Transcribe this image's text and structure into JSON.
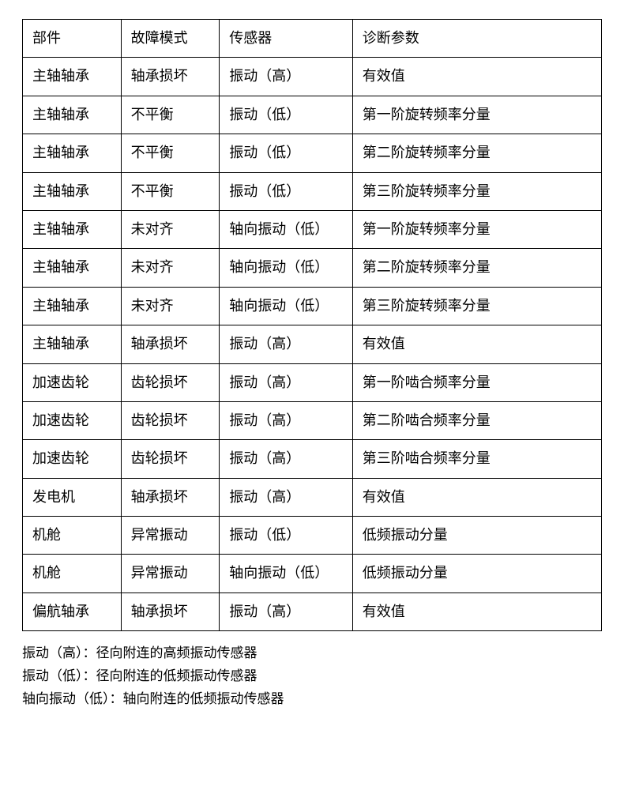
{
  "table": {
    "columns": [
      "部件",
      "故障模式",
      "传感器",
      "诊断参数"
    ],
    "rows": [
      [
        "主轴轴承",
        "轴承损坏",
        "振动（高）",
        "有效值"
      ],
      [
        "主轴轴承",
        "不平衡",
        "振动（低）",
        "第一阶旋转频率分量"
      ],
      [
        "主轴轴承",
        "不平衡",
        "振动（低）",
        "第二阶旋转频率分量"
      ],
      [
        "主轴轴承",
        "不平衡",
        "振动（低）",
        "第三阶旋转频率分量"
      ],
      [
        "主轴轴承",
        "未对齐",
        "轴向振动（低）",
        "第一阶旋转频率分量"
      ],
      [
        "主轴轴承",
        "未对齐",
        "轴向振动（低）",
        "第二阶旋转频率分量"
      ],
      [
        "主轴轴承",
        "未对齐",
        "轴向振动（低）",
        "第三阶旋转频率分量"
      ],
      [
        "主轴轴承",
        "轴承损坏",
        "振动（高）",
        "有效值"
      ],
      [
        "加速齿轮",
        "齿轮损坏",
        "振动（高）",
        "第一阶啮合频率分量"
      ],
      [
        "加速齿轮",
        "齿轮损坏",
        "振动（高）",
        "第二阶啮合频率分量"
      ],
      [
        "加速齿轮",
        "齿轮损坏",
        "振动（高）",
        "第三阶啮合频率分量"
      ],
      [
        "发电机",
        "轴承损坏",
        "振动（高）",
        "有效值"
      ],
      [
        "机舱",
        "异常振动",
        "振动（低）",
        "低频振动分量"
      ],
      [
        "机舱",
        "异常振动",
        "轴向振动（低）",
        "低频振动分量"
      ],
      [
        "偏航轴承",
        "轴承损坏",
        "振动（高）",
        "有效值"
      ]
    ]
  },
  "footnotes": [
    "振动（高）：径向附连的高频振动传感器",
    "振动（低）：径向附连的低频振动传感器",
    "轴向振动（低）：轴向附连的低频振动传感器"
  ],
  "style": {
    "border_color": "#000000",
    "background_color": "#ffffff",
    "text_color": "#000000",
    "font_size_cell": 18,
    "font_size_footnote": 17,
    "col_widths_pct": [
      17,
      17,
      23,
      43
    ]
  }
}
